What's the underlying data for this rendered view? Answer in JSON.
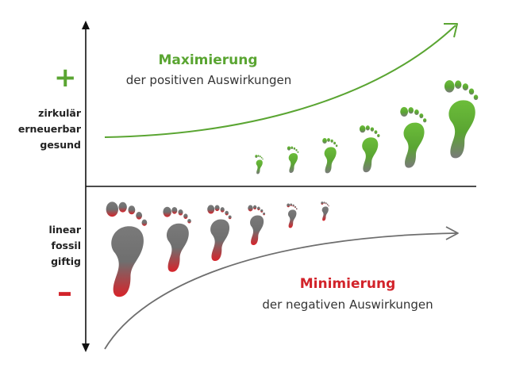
{
  "positive": {
    "sign": "+",
    "labels": [
      "zirkulär",
      "erneuerbar",
      "gesund"
    ],
    "title": "Maximierung",
    "subtitle": "der positiven Auswirkungen",
    "color": "#5aa532"
  },
  "negative": {
    "sign": "–",
    "labels": [
      "linear",
      "fossil",
      "giftig"
    ],
    "title": "Minimierung",
    "subtitle": "der negativen Auswirkungen",
    "color": "#d2232a"
  },
  "footprint_gradient": {
    "green_top": "#6fbf3c",
    "green_mid": "#5aa532",
    "gray": "#6f6f6f",
    "red": "#d2232a"
  },
  "curve_colors": {
    "positive": "#5aa532",
    "negative": "#6e6e6e"
  }
}
